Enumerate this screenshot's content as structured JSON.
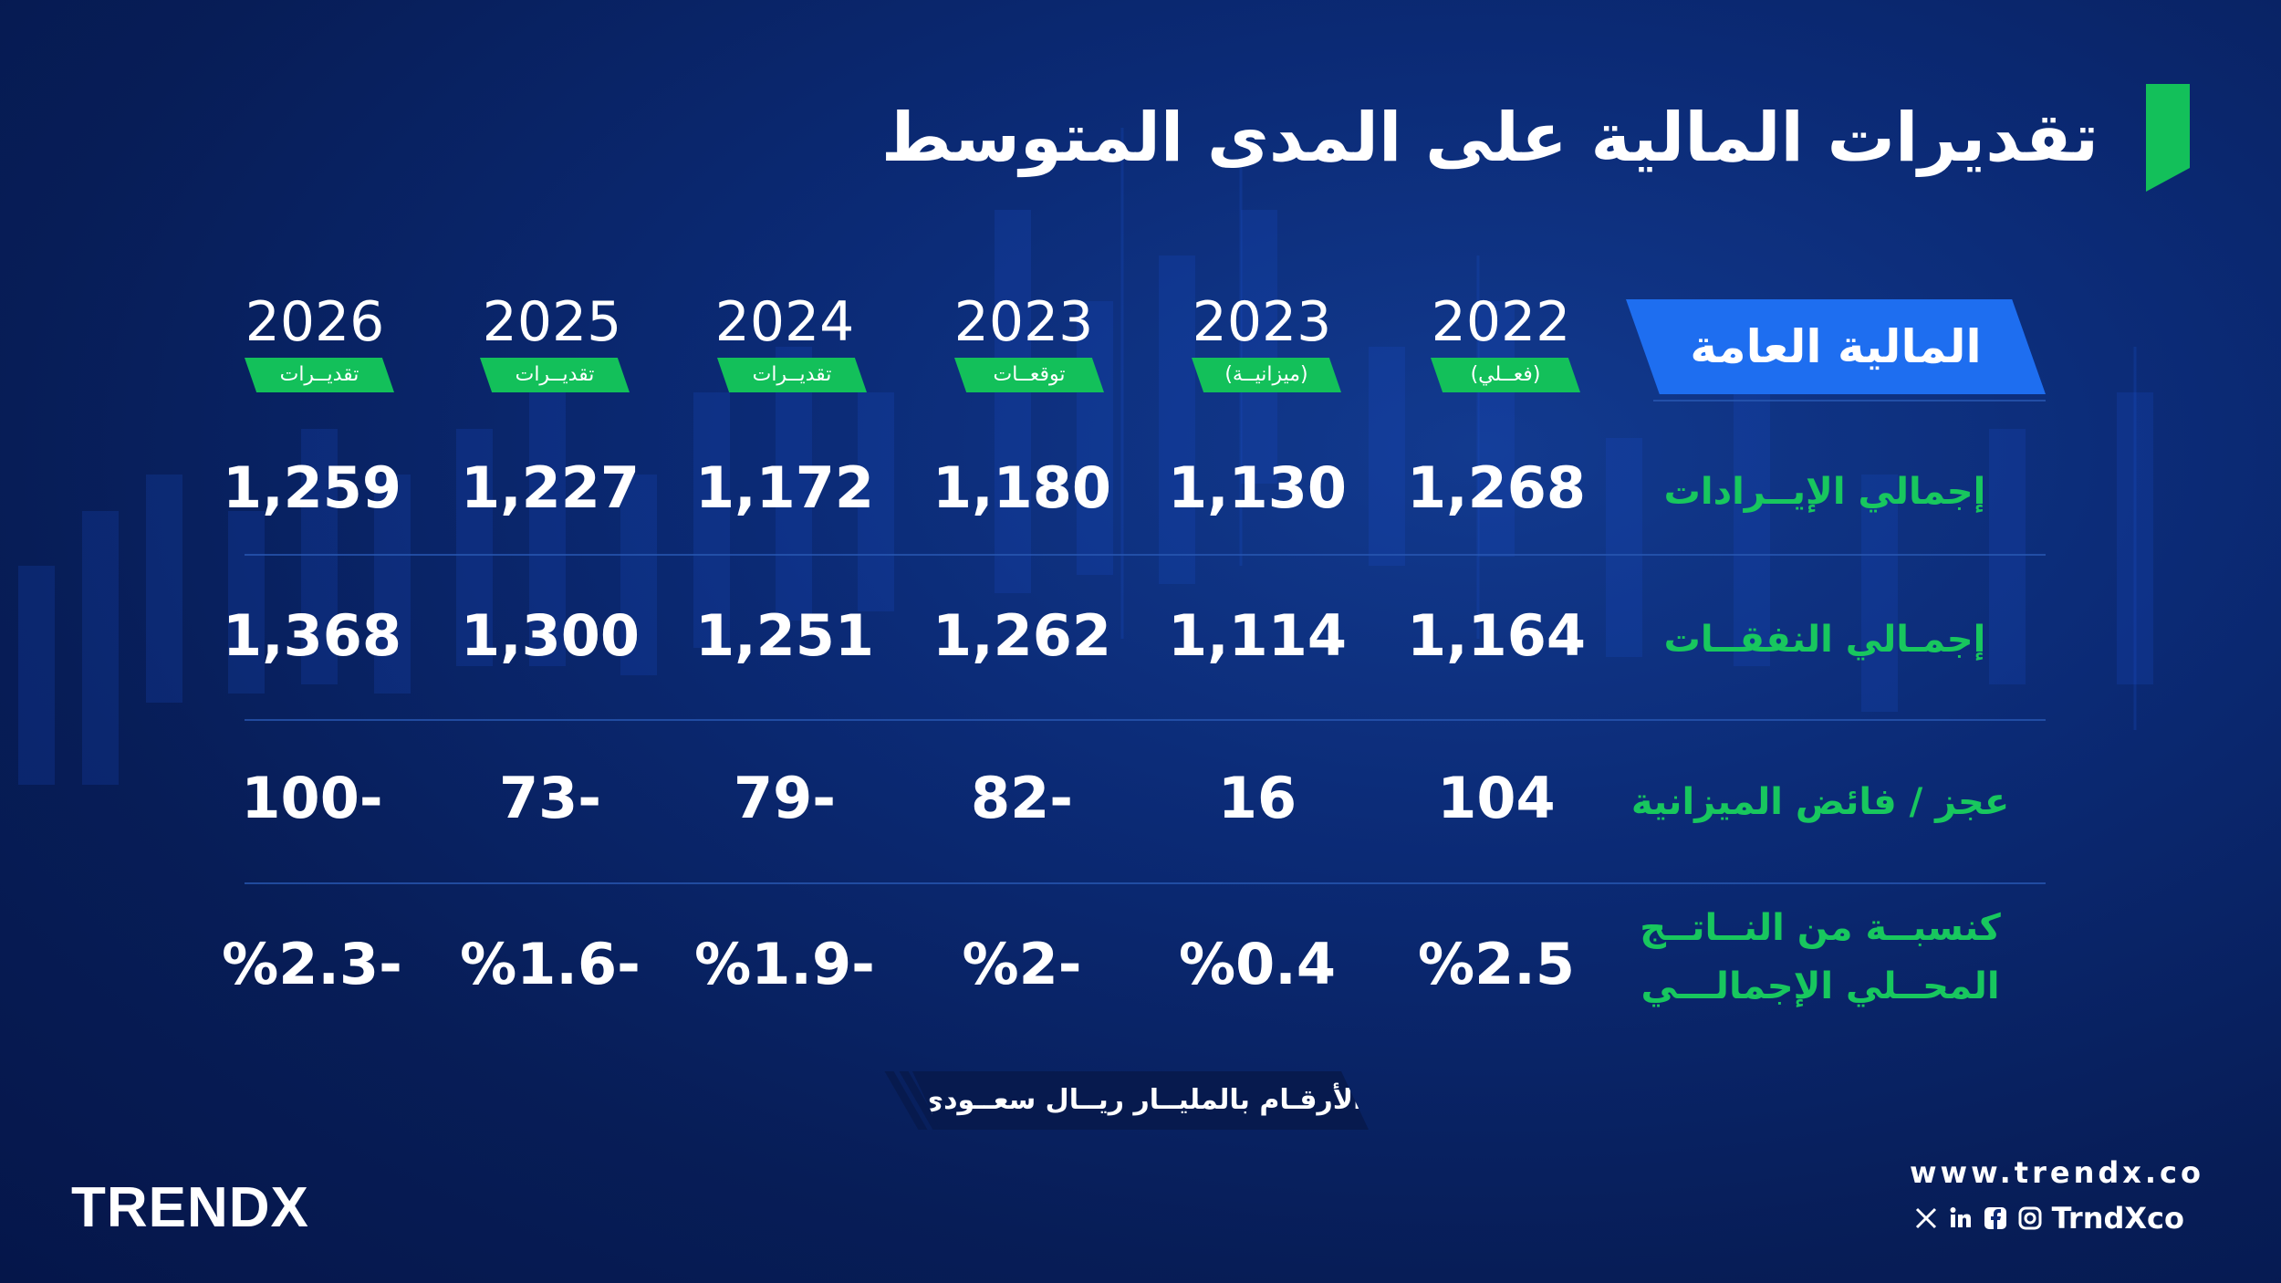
{
  "title": "تقديرات المالية على المدى المتوسط",
  "header_label": "المالية العامة",
  "columns": [
    {
      "year": "2022",
      "badge": "(فعــلي)"
    },
    {
      "year": "2023",
      "badge": "(ميزانيــة)"
    },
    {
      "year": "2023",
      "badge": "توقعــات"
    },
    {
      "year": "2024",
      "badge": "تقديــرات"
    },
    {
      "year": "2025",
      "badge": "تقديــرات"
    },
    {
      "year": "2026",
      "badge": "تقديــرات"
    }
  ],
  "rows": [
    {
      "label": "إجمالي الإيــرادات",
      "values": [
        "1,268",
        "1,130",
        "1,180",
        "1,172",
        "1,227",
        "1,259"
      ]
    },
    {
      "label": "إجمـالي النفقــات",
      "values": [
        "1,164",
        "1,114",
        "1,262",
        "1,251",
        "1,300",
        "1,368"
      ]
    },
    {
      "label": "عجز / فائض الميزانية",
      "values": [
        "104",
        "16",
        "82-",
        "79-",
        "73-",
        "100-"
      ]
    },
    {
      "label_line1": "كنسبــة من النــاتــج",
      "label_line2": "المحــلي الإجمالـــي",
      "values": [
        "%2.5",
        "%0.4",
        "%2-",
        "%1.9-",
        "%1.6-",
        "%2.3-"
      ]
    }
  ],
  "note": "الأرقـام بالمليــار ريــال سعــودي",
  "brand": "TRENDX",
  "footer": {
    "url": "www.trendx.co",
    "handle": "TrndXco"
  },
  "colors": {
    "accent_green": "#13c05a",
    "accent_blue": "#1e6ef0",
    "background": "#0b2a75"
  }
}
